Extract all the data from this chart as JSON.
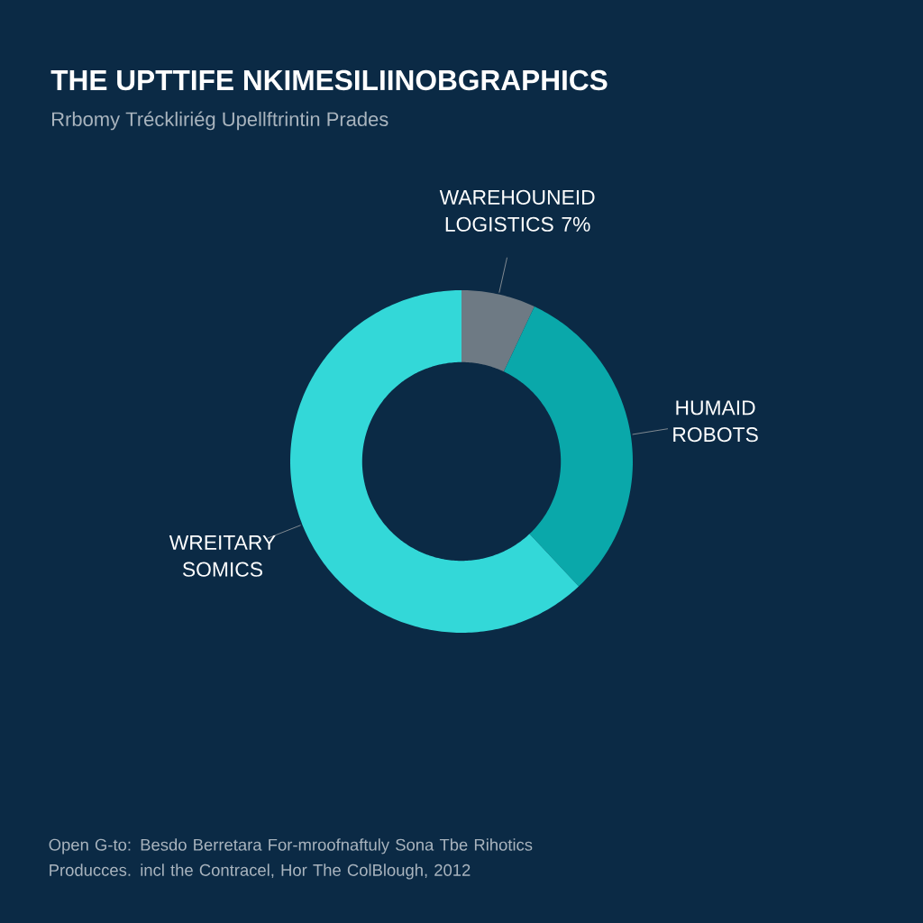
{
  "chart_data": {
    "type": "donut",
    "title": "THE UPTTIFE NKIMESILIINOBGRAPHICS",
    "subtitle": "Rrbomy Tréckliriég Upellftrintin Prades",
    "categories": [
      "WAREHOUNEID LOGISTICS",
      "HUMAID ROBOTS",
      "WREITARY SOMICS"
    ],
    "values": [
      7,
      31,
      62
    ],
    "value_labels": [
      "7%",
      null,
      null
    ],
    "colors": [
      "#6e7a84",
      "#0aa8aa",
      "#33d8d8"
    ],
    "annotations": [
      "Open G-to: Besdo Berretara For-mroofnaftuly Sona Tbe Rihotics Producces. incl the Contracel, Hor The ColBlough, 2012"
    ]
  }
}
